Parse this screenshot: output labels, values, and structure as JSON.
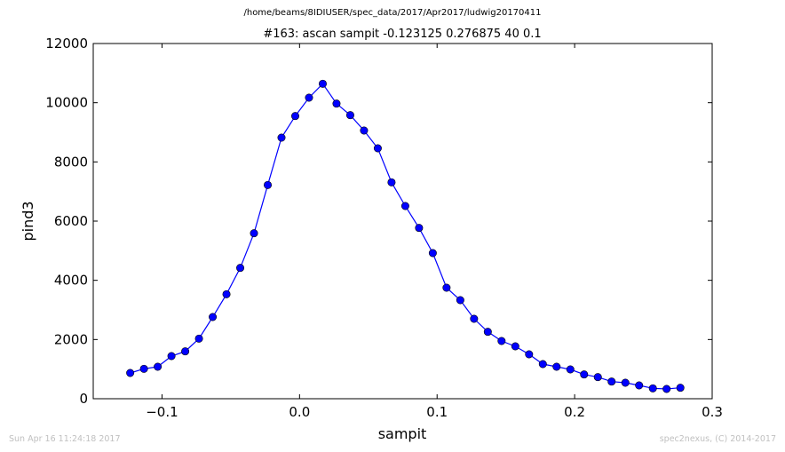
{
  "header": {
    "file_path": "/home/beams/8IDIUSER/spec_data/2017/Apr2017/ludwig20170411"
  },
  "footer": {
    "timestamp": "Sun Apr 16 11:24:18 2017",
    "credit": "spec2nexus, (C) 2014-2017"
  },
  "colors": {
    "line": "#0000ff",
    "marker_fill": "#0000ff",
    "marker_edge": "#000000",
    "footer_text": "#c0c0c0"
  },
  "chart_data": {
    "type": "line",
    "title": "#163: ascan  sampit -0.123125 0.276875  40 0.1",
    "xlabel": "sampit",
    "ylabel": "pind3",
    "xlim": [
      -0.15,
      0.3
    ],
    "ylim": [
      0,
      12000
    ],
    "xticks": [
      -0.1,
      0.0,
      0.1,
      0.2,
      0.3
    ],
    "xtick_labels": [
      "−0.1",
      "0.0",
      "0.1",
      "0.2",
      "0.3"
    ],
    "yticks": [
      0,
      2000,
      4000,
      6000,
      8000,
      10000,
      12000
    ],
    "ytick_labels": [
      "0",
      "2000",
      "4000",
      "6000",
      "8000",
      "10000",
      "12000"
    ],
    "grid": false,
    "markers": true,
    "series": [
      {
        "x": [
          -0.123125,
          -0.113125,
          -0.103125,
          -0.093125,
          -0.083125,
          -0.073125,
          -0.063125,
          -0.053125,
          -0.043125,
          -0.033125,
          -0.023125,
          -0.013125,
          -0.003125,
          0.006875,
          0.016875,
          0.026875,
          0.036875,
          0.046875,
          0.056875,
          0.066875,
          0.076875,
          0.086875,
          0.096875,
          0.106875,
          0.116875,
          0.126875,
          0.136875,
          0.146875,
          0.156875,
          0.166875,
          0.176875,
          0.186875,
          0.196875,
          0.206875,
          0.216875,
          0.226875,
          0.236875,
          0.246875,
          0.256875,
          0.266875,
          0.276875
        ],
        "y": [
          870,
          1010,
          1080,
          1440,
          1600,
          2030,
          2760,
          3530,
          4420,
          5590,
          7220,
          8820,
          9550,
          10170,
          10640,
          9970,
          9580,
          9060,
          8460,
          7310,
          6510,
          5770,
          4920,
          3750,
          3330,
          2700,
          2260,
          1950,
          1770,
          1500,
          1170,
          1080,
          990,
          820,
          730,
          580,
          540,
          450,
          350,
          330,
          370
        ]
      }
    ]
  }
}
